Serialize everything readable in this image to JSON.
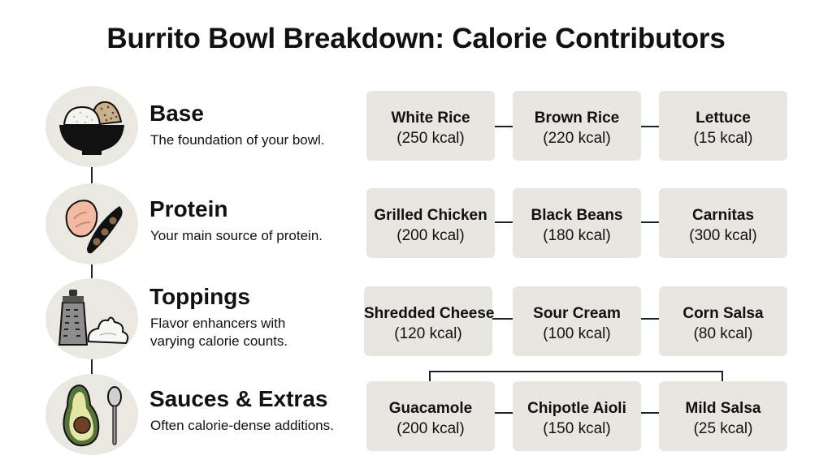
{
  "title": "Burrito Bowl Breakdown: Calorie Contributors",
  "categories": [
    {
      "title": "Base",
      "description": "The foundation of your bowl.",
      "icon": "rice-bowl-icon",
      "items": [
        {
          "name": "White Rice",
          "kcal": "(250 kcal)"
        },
        {
          "name": "Brown Rice",
          "kcal": "(220 kcal)"
        },
        {
          "name": "Lettuce",
          "kcal": "(15 kcal)"
        }
      ]
    },
    {
      "title": "Protein",
      "description": "Your main source of protein.",
      "icon": "chicken-beans-icon",
      "items": [
        {
          "name": "Grilled Chicken",
          "kcal": "(200 kcal)"
        },
        {
          "name": "Black Beans",
          "kcal": "(180 kcal)"
        },
        {
          "name": "Carnitas",
          "kcal": "(300 kcal)"
        }
      ]
    },
    {
      "title": "Toppings",
      "description_lines": [
        "Flavor enhancers with",
        "varying calorie counts."
      ],
      "icon": "grater-cream-icon",
      "items": [
        {
          "name": "Shredded Cheese",
          "kcal": "(120 kcal)"
        },
        {
          "name": "Sour Cream",
          "kcal": "(100 kcal)"
        },
        {
          "name": "Corn Salsa",
          "kcal": "(80 kcal)"
        }
      ]
    },
    {
      "title": "Sauces & Extras",
      "description": "Often calorie-dense additions.",
      "icon": "avocado-spoon-icon",
      "items": [
        {
          "name": "Guacamole",
          "kcal": "(200 kcal)"
        },
        {
          "name": "Chipotle Aioli",
          "kcal": "(150 kcal)"
        },
        {
          "name": "Mild Salsa",
          "kcal": "(25 kcal)"
        }
      ]
    }
  ]
}
